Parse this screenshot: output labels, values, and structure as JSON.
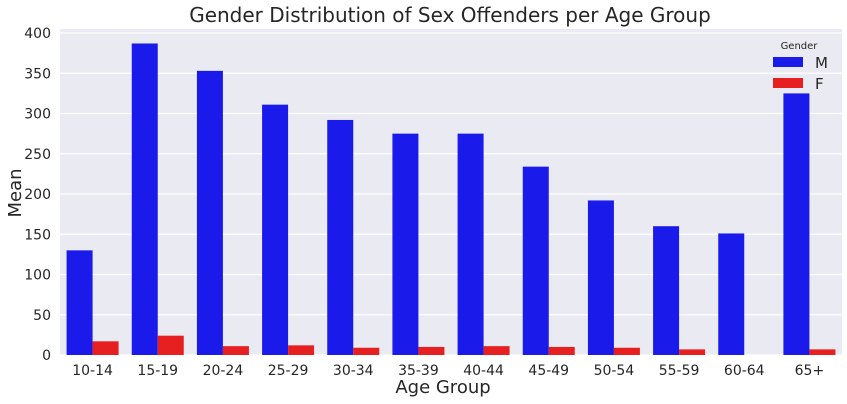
{
  "chart_data": {
    "type": "bar",
    "title": "Gender Distribution of Sex Offenders per Age Group",
    "xlabel": "Age Group",
    "ylabel": "Mean",
    "ylim": [
      0,
      405
    ],
    "yticks": [
      0,
      50,
      100,
      150,
      200,
      250,
      300,
      350,
      400
    ],
    "grid": true,
    "categories": [
      "10-14",
      "15-19",
      "20-24",
      "25-29",
      "30-34",
      "35-39",
      "40-44",
      "45-49",
      "50-54",
      "55-59",
      "60-64",
      "65+"
    ],
    "series": [
      {
        "name": "M",
        "color": "#1a1aea",
        "values": [
          130,
          387,
          353,
          311,
          292,
          275,
          275,
          234,
          192,
          160,
          151,
          325
        ]
      },
      {
        "name": "F",
        "color": "#e62020",
        "values": [
          17,
          24,
          11,
          12,
          9,
          10,
          11,
          10,
          9,
          7,
          0,
          7
        ]
      }
    ],
    "legend": {
      "title": "Gender",
      "placement": "top-right"
    },
    "background": "#eaeaf2",
    "grid_color": "#ffffff"
  }
}
